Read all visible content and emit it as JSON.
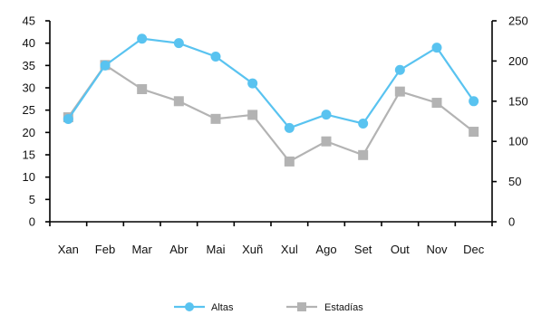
{
  "chart_data": {
    "type": "line",
    "categories": [
      "Xan",
      "Feb",
      "Mar",
      "Abr",
      "Mai",
      "Xuñ",
      "Xul",
      "Ago",
      "Set",
      "Out",
      "Nov",
      "Dec"
    ],
    "series": [
      {
        "name": "Altas",
        "axis": "left",
        "color": "#59c3f0",
        "marker": "circle",
        "values": [
          23,
          35,
          41,
          40,
          37,
          31,
          21,
          24,
          22,
          34,
          39,
          27
        ]
      },
      {
        "name": "Estadías",
        "axis": "right",
        "color": "#b3b3b3",
        "marker": "square",
        "values": [
          130,
          195,
          165,
          150,
          128,
          133,
          75,
          100,
          83,
          162,
          148,
          112
        ]
      }
    ],
    "y_left": {
      "min": 0,
      "max": 45,
      "step": 5
    },
    "y_right": {
      "min": 0,
      "max": 250,
      "step": 50
    },
    "grid": false,
    "legend": "bottom-center"
  }
}
